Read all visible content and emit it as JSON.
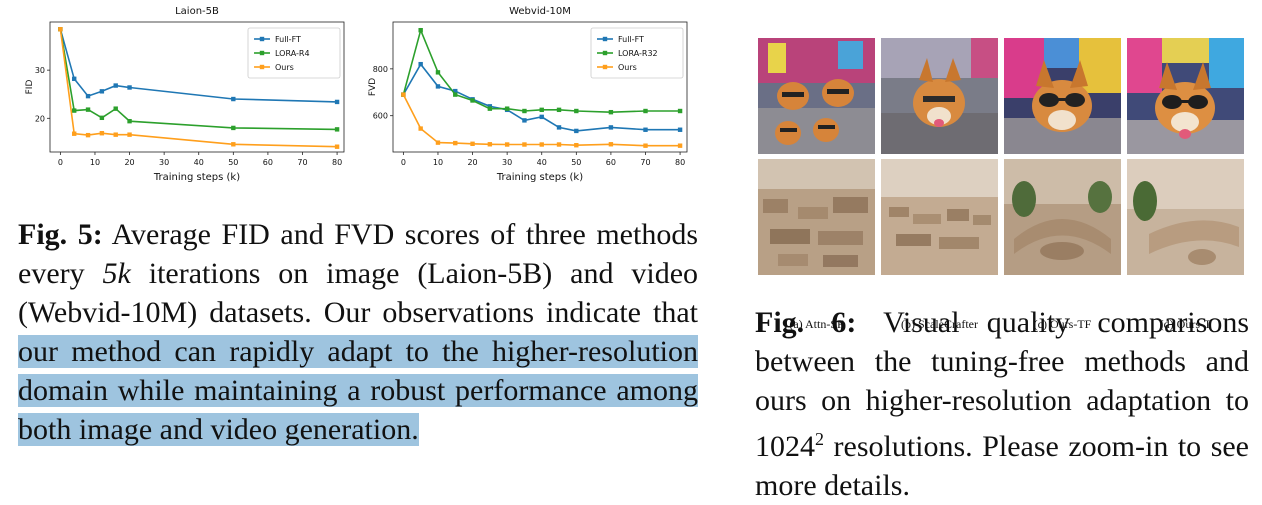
{
  "chart_data": [
    {
      "type": "line",
      "title": "Laion-5B",
      "xlabel": "Training steps (k)",
      "ylabel": "FID",
      "xticks": [
        0,
        10,
        20,
        30,
        40,
        50,
        60,
        70,
        80
      ],
      "yticks": [
        20,
        30
      ],
      "xlim": [
        -3,
        82
      ],
      "ylim": [
        13,
        40
      ],
      "legend_position": "top-right",
      "series": [
        {
          "name": "Full-FT",
          "color": "#1f77b4",
          "x": [
            0,
            4,
            8,
            12,
            16,
            20,
            50,
            80
          ],
          "y": [
            38.5,
            28.2,
            24.6,
            25.6,
            26.8,
            26.4,
            24.0,
            23.4
          ]
        },
        {
          "name": "LORA-R4",
          "color": "#2ca02c",
          "x": [
            0,
            4,
            8,
            12,
            16,
            20,
            50,
            80
          ],
          "y": [
            38.5,
            21.6,
            21.8,
            20.1,
            22.0,
            19.4,
            18.0,
            17.7
          ]
        },
        {
          "name": "Ours",
          "color": "#ff9f1c",
          "x": [
            0,
            4,
            8,
            12,
            16,
            20,
            50,
            80
          ],
          "y": [
            38.5,
            16.8,
            16.5,
            16.9,
            16.6,
            16.6,
            14.6,
            14.1
          ]
        }
      ]
    },
    {
      "type": "line",
      "title": "Webvid-10M",
      "xlabel": "Training steps (k)",
      "ylabel": "FVD",
      "xticks": [
        0,
        10,
        20,
        30,
        40,
        50,
        60,
        70,
        80
      ],
      "yticks": [
        600,
        800
      ],
      "xlim": [
        -3,
        82
      ],
      "ylim": [
        445,
        1000
      ],
      "legend_position": "top-right",
      "series": [
        {
          "name": "Full-FT",
          "color": "#1f77b4",
          "x": [
            0,
            5,
            10,
            15,
            20,
            25,
            30,
            35,
            40,
            45,
            50,
            60,
            70,
            80
          ],
          "y": [
            690,
            820,
            725,
            705,
            670,
            640,
            625,
            580,
            595,
            550,
            535,
            550,
            540,
            540
          ]
        },
        {
          "name": "LORA-R32",
          "color": "#2ca02c",
          "x": [
            0,
            5,
            10,
            15,
            20,
            25,
            30,
            35,
            40,
            45,
            50,
            60,
            70,
            80
          ],
          "y": [
            690,
            965,
            785,
            690,
            665,
            630,
            630,
            620,
            625,
            625,
            620,
            615,
            620,
            620
          ]
        },
        {
          "name": "Ours",
          "color": "#ff9f1c",
          "x": [
            0,
            5,
            10,
            15,
            20,
            25,
            30,
            35,
            40,
            45,
            50,
            60,
            70,
            80
          ],
          "y": [
            690,
            545,
            485,
            483,
            480,
            478,
            477,
            477,
            477,
            477,
            474,
            478,
            472,
            472
          ]
        }
      ]
    }
  ],
  "fig5": {
    "label": "Fig. 5:",
    "text_1": "Average FID and FVD scores of three methods every ",
    "math": "5k",
    "text_2": " iterations on image (Laion-5B) and video (Webvid-10M) datasets. Our observations indicate that ",
    "highlight": "our method can rapidly adapt to the higher-resolution domain while maintaining a robust performance among both image and video generation."
  },
  "fig6": {
    "label": "Fig. 6:",
    "text_1": "Visual quality comparisons between the tuning-free methods and ours on higher-resolution adaptation to 1024",
    "sup": "2",
    "text_2": " resolutions. Please zoom-in to see more details.",
    "captions": [
      "(a) Attn-SF",
      "(b) ScaleCrafter",
      "(c) Ours-TF",
      "(d) Ours-T"
    ],
    "image_subjects": [
      "corgi-dogs-times-square",
      "living-room-sofa"
    ]
  }
}
